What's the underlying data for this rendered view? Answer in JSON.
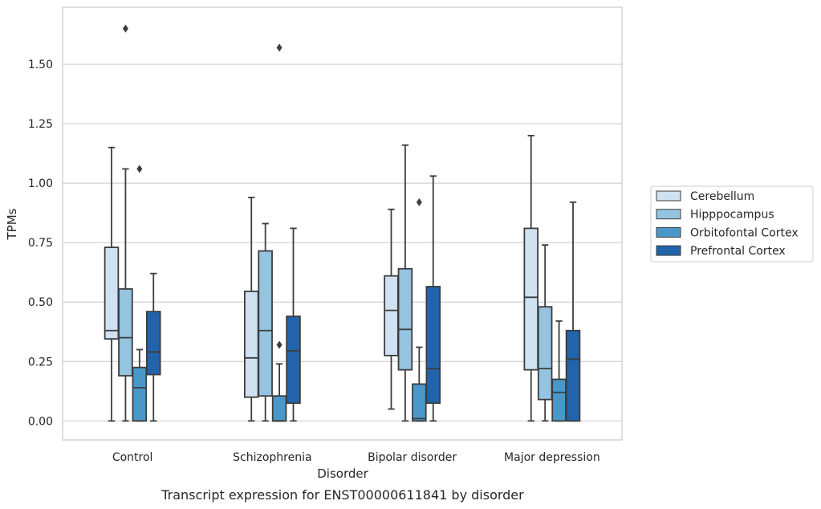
{
  "chart_data": {
    "type": "box",
    "title": "",
    "caption": "Transcript expression for ENST00000611841 by disorder",
    "xlabel": "Disorder",
    "ylabel": "TPMs",
    "ylim": [
      -0.08,
      1.74
    ],
    "yticks": [
      0.0,
      0.25,
      0.5,
      0.75,
      1.0,
      1.25,
      1.5
    ],
    "ytick_labels": [
      "0.00",
      "0.25",
      "0.50",
      "0.75",
      "1.00",
      "1.25",
      "1.50"
    ],
    "grid": "horizontal",
    "legend_position": "right",
    "categories": [
      "Control",
      "Schizophrenia",
      "Bipolar disorder",
      "Major depression"
    ],
    "series": [
      {
        "name": "Cerebellum",
        "color": "#d0e1f2",
        "boxes": [
          {
            "whislo": 0.0,
            "q1": 0.345,
            "med": 0.38,
            "q3": 0.73,
            "whishi": 1.15,
            "fliers": []
          },
          {
            "whislo": 0.0,
            "q1": 0.1,
            "med": 0.265,
            "q3": 0.545,
            "whishi": 0.94,
            "fliers": []
          },
          {
            "whislo": 0.05,
            "q1": 0.275,
            "med": 0.465,
            "q3": 0.61,
            "whishi": 0.89,
            "fliers": []
          },
          {
            "whislo": 0.0,
            "q1": 0.215,
            "med": 0.52,
            "q3": 0.81,
            "whishi": 1.2,
            "fliers": []
          }
        ]
      },
      {
        "name": "Hipppocampus",
        "color": "#94c4df",
        "boxes": [
          {
            "whislo": 0.0,
            "q1": 0.19,
            "med": 0.35,
            "q3": 0.555,
            "whishi": 1.06,
            "fliers": [
              1.65
            ]
          },
          {
            "whislo": 0.0,
            "q1": 0.105,
            "med": 0.38,
            "q3": 0.715,
            "whishi": 0.83,
            "fliers": []
          },
          {
            "whislo": 0.0,
            "q1": 0.215,
            "med": 0.385,
            "q3": 0.64,
            "whishi": 1.16,
            "fliers": []
          },
          {
            "whislo": 0.0,
            "q1": 0.09,
            "med": 0.22,
            "q3": 0.48,
            "whishi": 0.74,
            "fliers": []
          }
        ]
      },
      {
        "name": "Orbitofontal Cortex",
        "color": "#4a98c9",
        "boxes": [
          {
            "whislo": 0.0,
            "q1": 0.0,
            "med": 0.14,
            "q3": 0.225,
            "whishi": 0.3,
            "fliers": [
              1.06
            ]
          },
          {
            "whislo": 0.0,
            "q1": 0.0,
            "med": 0.0,
            "q3": 0.105,
            "whishi": 0.24,
            "fliers": [
              0.32,
              1.57
            ]
          },
          {
            "whislo": 0.0,
            "q1": 0.0,
            "med": 0.01,
            "q3": 0.155,
            "whishi": 0.31,
            "fliers": [
              0.92
            ]
          },
          {
            "whislo": 0.0,
            "q1": 0.0,
            "med": 0.12,
            "q3": 0.175,
            "whishi": 0.42,
            "fliers": []
          }
        ]
      },
      {
        "name": "Prefrontal Cortex",
        "color": "#2164ab",
        "boxes": [
          {
            "whislo": 0.0,
            "q1": 0.195,
            "med": 0.29,
            "q3": 0.46,
            "whishi": 0.62,
            "fliers": []
          },
          {
            "whislo": 0.0,
            "q1": 0.075,
            "med": 0.295,
            "q3": 0.44,
            "whishi": 0.81,
            "fliers": []
          },
          {
            "whislo": 0.0,
            "q1": 0.075,
            "med": 0.22,
            "q3": 0.565,
            "whishi": 1.03,
            "fliers": []
          },
          {
            "whislo": 0.0,
            "q1": 0.0,
            "med": 0.26,
            "q3": 0.38,
            "whishi": 0.92,
            "fliers": []
          }
        ]
      }
    ]
  }
}
